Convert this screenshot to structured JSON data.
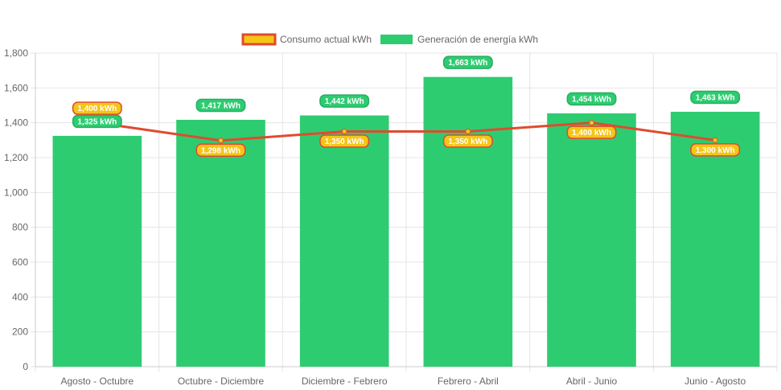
{
  "chart_data": {
    "type": "bar",
    "categories": [
      "Agosto - Octubre",
      "Octubre - Diciembre",
      "Diciembre - Febrero",
      "Febrero - Abril",
      "Abril - Junio",
      "Junio - Agosto"
    ],
    "series": [
      {
        "name": "Consumo actual kWh",
        "type": "line",
        "values": [
          1400,
          1298,
          1350,
          1350,
          1400,
          1300
        ],
        "labels": [
          "1,400 kWh",
          "1,298 kWh",
          "1,350 kWh",
          "1,350 kWh",
          "1,400 kWh",
          "1,300 kWh"
        ],
        "color": "#e04b2f",
        "fill": "#f5c518"
      },
      {
        "name": "Generación de energía kWh",
        "type": "bar",
        "values": [
          1325,
          1417,
          1442,
          1663,
          1454,
          1463
        ],
        "labels": [
          "1,325 kWh",
          "1,417 kWh",
          "1,442 kWh",
          "1,663 kWh",
          "1,454 kWh",
          "1,463 kWh"
        ],
        "color": "#2ecc71"
      }
    ],
    "ylim": [
      0,
      1800
    ],
    "yticks": [
      0,
      200,
      400,
      600,
      800,
      1000,
      1200,
      1400,
      1600,
      1800
    ],
    "ytick_labels": [
      "0",
      "200",
      "400",
      "600",
      "800",
      "1,000",
      "1,200",
      "1,400",
      "1,600",
      "1,800"
    ],
    "grid": true,
    "legend_position": "top-center",
    "title": "",
    "xlabel": "",
    "ylabel": ""
  }
}
